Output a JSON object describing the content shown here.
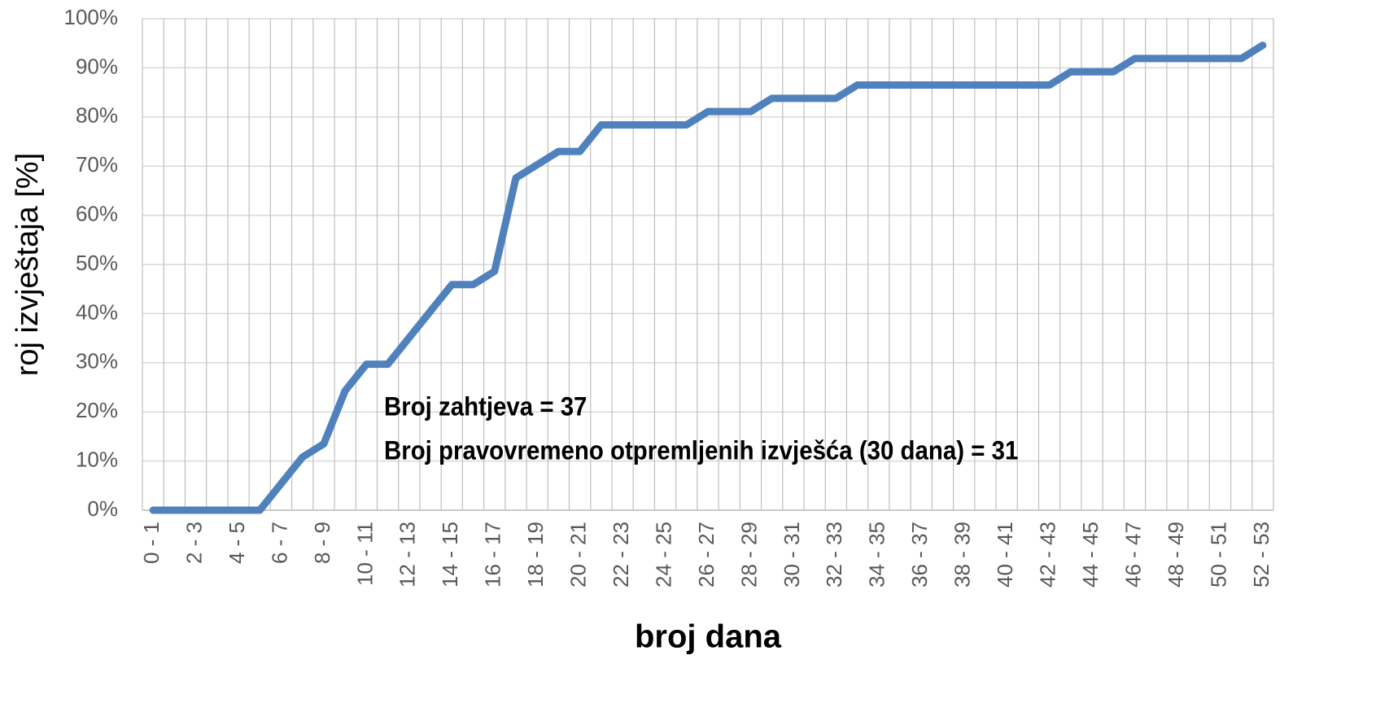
{
  "chart_data": {
    "type": "line",
    "y_label": "roj izvještaja [%]",
    "x_label": "broj dana",
    "annotations": [
      "Broj zahtjeva = 37",
      "Broj pravovremeno otpremljenih izvješća (30 dana) = 31"
    ],
    "categories": [
      "0 - 1",
      null,
      "2 - 3",
      null,
      "4 - 5",
      null,
      "6 - 7",
      null,
      "8 - 9",
      null,
      "10 - 11",
      null,
      "12 - 13",
      null,
      "14 - 15",
      null,
      "16 - 17",
      null,
      "18 - 19",
      null,
      "20 - 21",
      null,
      "22 - 23",
      null,
      "24 - 25",
      null,
      "26 - 27",
      null,
      "28 - 29",
      null,
      "30 - 31",
      null,
      "32 - 33",
      null,
      "34 - 35",
      null,
      "36 - 37",
      null,
      "38 - 39",
      null,
      "40 - 41",
      null,
      "42 - 43",
      null,
      "44 - 45",
      null,
      "46 - 47",
      null,
      "48 - 49",
      null,
      "50 - 51",
      null,
      "52 - 53"
    ],
    "values": [
      0,
      0,
      0,
      0,
      0,
      0,
      5.4,
      10.8,
      13.5,
      24.3,
      29.7,
      29.7,
      35.1,
      40.5,
      45.9,
      45.9,
      48.6,
      67.6,
      70.3,
      73.0,
      73.0,
      78.4,
      78.4,
      78.4,
      78.4,
      78.4,
      81.1,
      81.1,
      81.1,
      83.8,
      83.8,
      83.8,
      83.8,
      86.5,
      86.5,
      86.5,
      86.5,
      86.5,
      86.5,
      86.5,
      86.5,
      86.5,
      86.5,
      89.2,
      89.2,
      89.2,
      91.9,
      91.9,
      91.9,
      91.9,
      91.9,
      91.9,
      94.6
    ],
    "color": "#4f81bd",
    "ylim": [
      0,
      100
    ],
    "yticks": [
      {
        "value": 0,
        "label": "0%"
      },
      {
        "value": 10,
        "label": "10%"
      },
      {
        "value": 20,
        "label": "20%"
      },
      {
        "value": 30,
        "label": "30%"
      },
      {
        "value": 40,
        "label": "40%"
      },
      {
        "value": 50,
        "label": "50%"
      },
      {
        "value": 60,
        "label": "60%"
      },
      {
        "value": 70,
        "label": "70%"
      },
      {
        "value": 80,
        "label": "80%"
      },
      {
        "value": 90,
        "label": "90%"
      },
      {
        "value": 100,
        "label": "100%"
      }
    ],
    "grid": true
  }
}
